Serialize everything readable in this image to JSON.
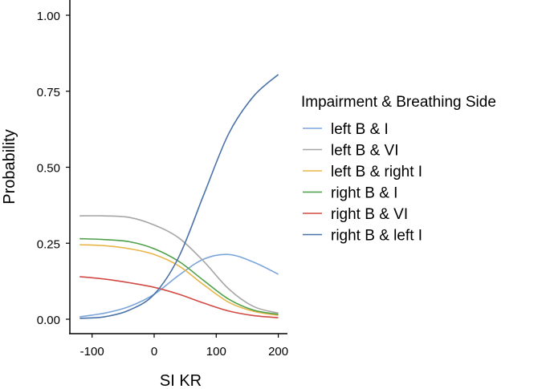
{
  "chart_data": {
    "type": "line",
    "title": "",
    "xlabel": "SI KR",
    "ylabel": "Probability",
    "xlim": [
      -120,
      200
    ],
    "ylim": [
      0,
      1
    ],
    "xticks": [
      -100,
      0,
      100,
      200
    ],
    "xtick_labels": [
      "-100",
      "0",
      "100",
      "200"
    ],
    "yticks": [
      0,
      0.25,
      0.5,
      0.75,
      1
    ],
    "ytick_labels": [
      "0.00",
      "0.25",
      "0.50",
      "0.75",
      "1.00"
    ],
    "grid": false,
    "legend": {
      "title": "Impairment & Breathing Side",
      "placement": "right"
    },
    "x": [
      -120,
      -80,
      -40,
      0,
      40,
      80,
      120,
      160,
      200
    ],
    "series": [
      {
        "name": "left B & I",
        "color": "#7aa6dc",
        "values": [
          0.008,
          0.02,
          0.042,
          0.082,
          0.145,
          0.198,
          0.213,
          0.188,
          0.148
        ]
      },
      {
        "name": "left B & VI",
        "color": "#a6a6a6",
        "values": [
          0.34,
          0.34,
          0.335,
          0.31,
          0.267,
          0.19,
          0.1,
          0.042,
          0.02
        ]
      },
      {
        "name": "left B & right I",
        "color": "#e8b547",
        "values": [
          0.245,
          0.242,
          0.232,
          0.213,
          0.175,
          0.113,
          0.056,
          0.026,
          0.013
        ]
      },
      {
        "name": "right B & I",
        "color": "#4da04a",
        "values": [
          0.265,
          0.262,
          0.255,
          0.232,
          0.19,
          0.127,
          0.066,
          0.03,
          0.016
        ]
      },
      {
        "name": "right B & VI",
        "color": "#d24a43",
        "values": [
          0.14,
          0.132,
          0.12,
          0.105,
          0.082,
          0.053,
          0.027,
          0.012,
          0.005
        ]
      },
      {
        "name": "right B & left I",
        "color": "#4a72a8",
        "values": [
          0.003,
          0.008,
          0.03,
          0.082,
          0.206,
          0.41,
          0.61,
          0.733,
          0.805
        ]
      }
    ]
  }
}
